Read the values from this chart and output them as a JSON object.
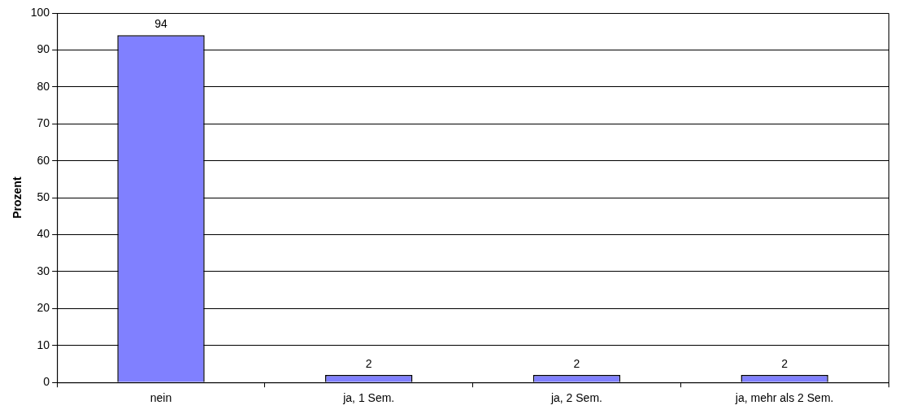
{
  "chart_data": {
    "type": "bar",
    "ylabel": "Prozent",
    "categories": [
      "nein",
      "ja, 1 Sem.",
      "ja, 2 Sem.",
      "ja, mehr als 2 Sem."
    ],
    "values": [
      94,
      2,
      2,
      2
    ],
    "color": "#8080ff",
    "ylim": [
      0,
      100
    ],
    "yticks": [
      0,
      10,
      20,
      30,
      40,
      50,
      60,
      70,
      80,
      90,
      100
    ],
    "grid": "y",
    "legend": false,
    "data_labels": true
  }
}
